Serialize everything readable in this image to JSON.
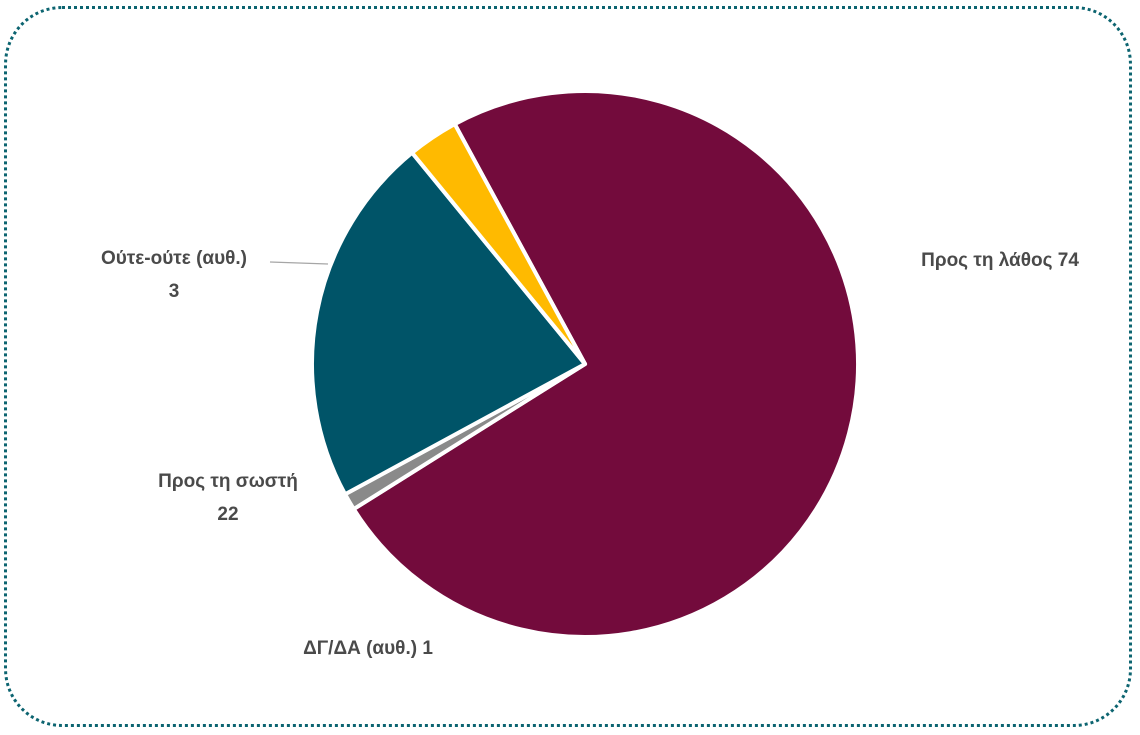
{
  "chart_data": {
    "type": "pie",
    "slices": [
      {
        "label": "Προς τη λάθος",
        "value": 74,
        "color": "#730b3c"
      },
      {
        "label": "ΔΓ/ΔΑ (αυθ.)",
        "value": 1,
        "color": "#8a8a8a"
      },
      {
        "label": "Προς τη σωστή",
        "value": 22,
        "color": "#005468"
      },
      {
        "label": "Ούτε-ούτε (αυθ.)",
        "value": 3,
        "color": "#ffba00"
      }
    ],
    "legend": "none",
    "data_labels": {
      "lathos": {
        "text": "Προς τη λάθος 74"
      },
      "dg": {
        "text": "ΔΓ/ΔΑ (αυθ.) 1"
      },
      "sosti": {
        "line1": "Προς τη σωστή",
        "line2": "22"
      },
      "oute": {
        "line1": "Ούτε-ούτε (αυθ.)",
        "line2": "3"
      }
    }
  }
}
